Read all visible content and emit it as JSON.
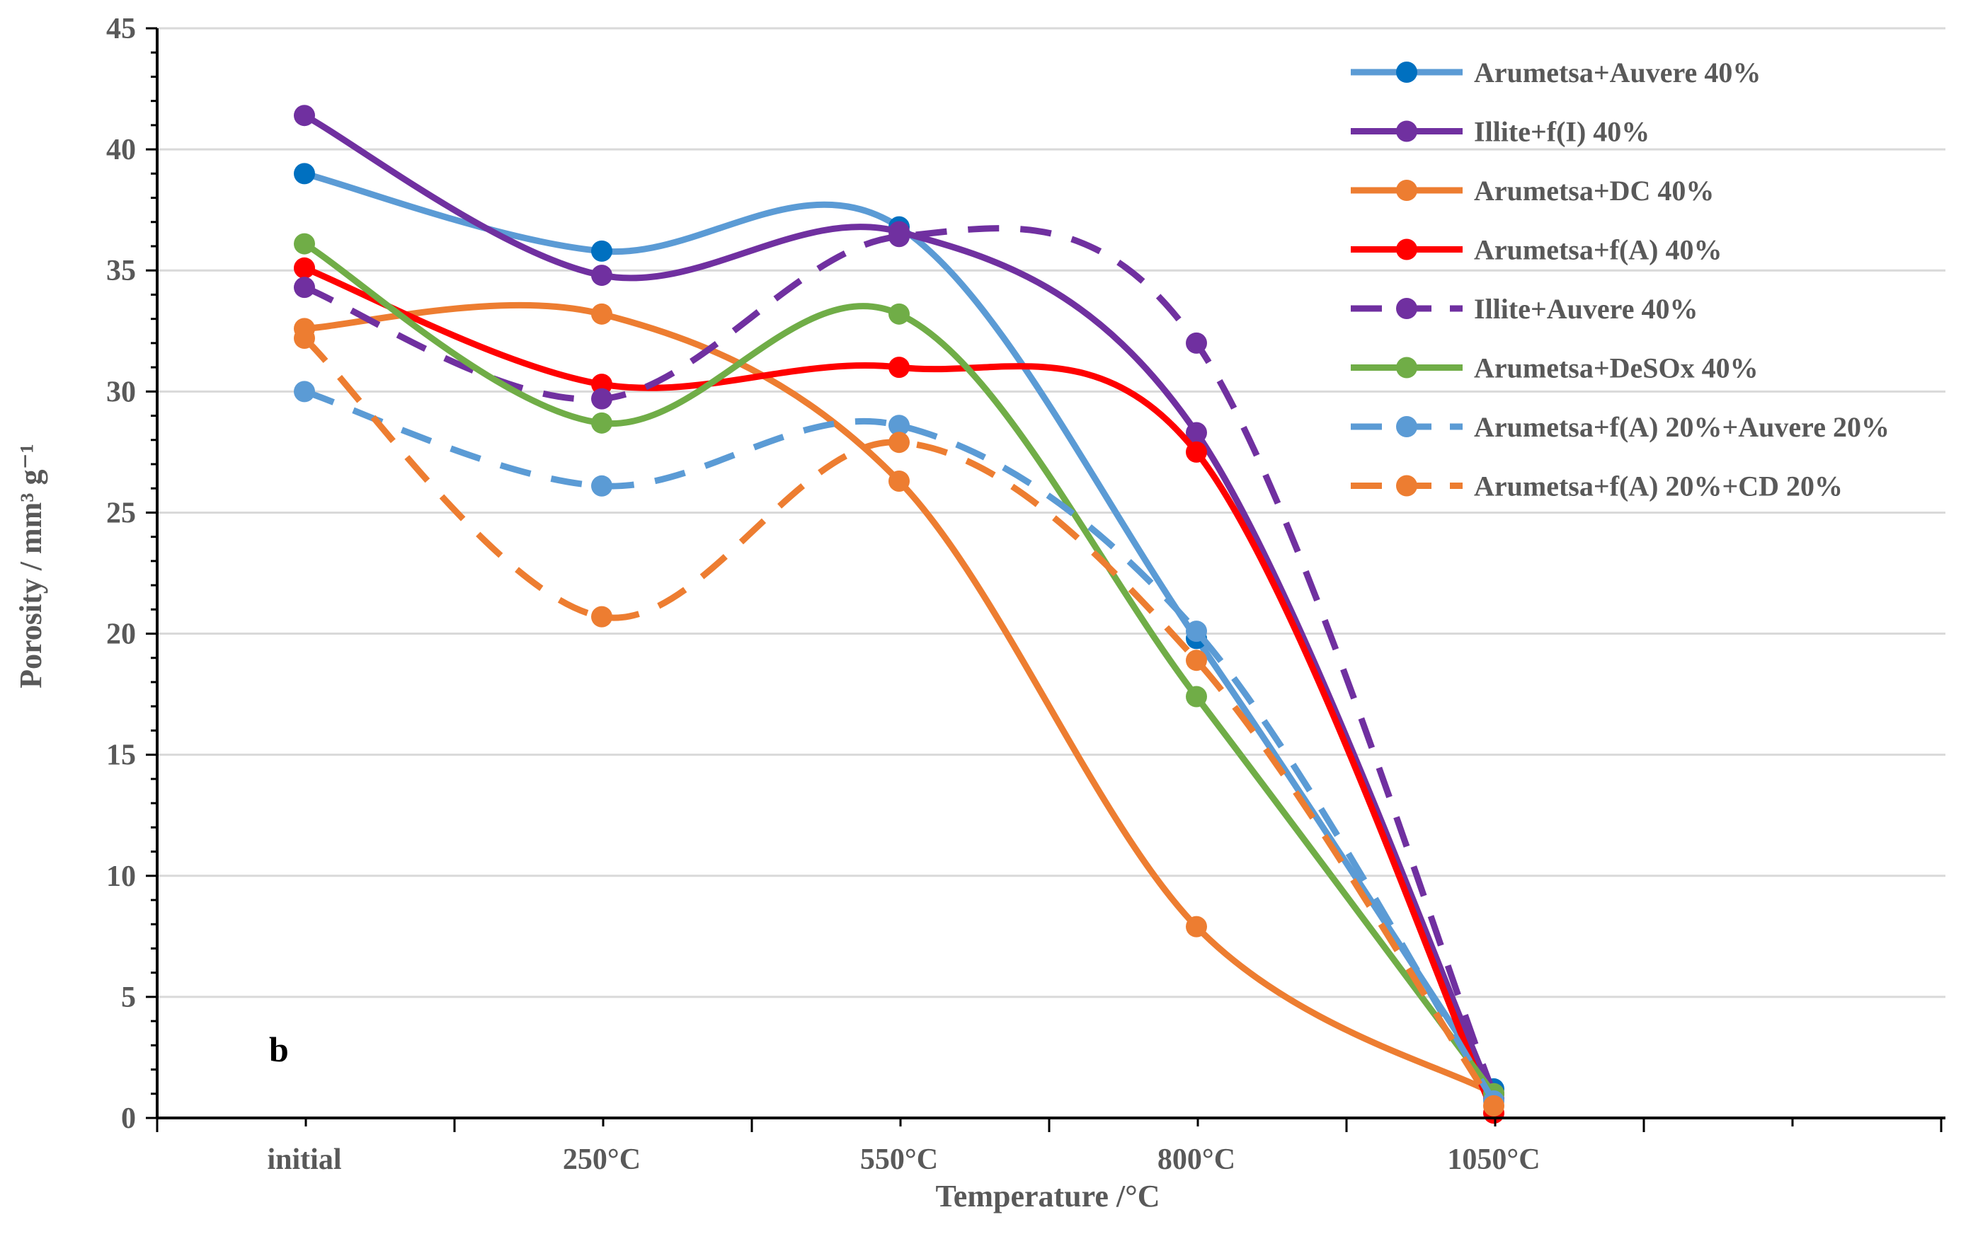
{
  "chart_data": {
    "type": "line",
    "title": "",
    "panel_label": "b",
    "xlabel": "Temperature /°C",
    "ylabel": "Porosity / mm³ g⁻¹",
    "categories": [
      "initial",
      "250°C",
      "550°C",
      "800°C",
      "1050°C"
    ],
    "ylim": [
      0,
      45
    ],
    "yticks": [
      0,
      5,
      10,
      15,
      20,
      25,
      30,
      35,
      40,
      45
    ],
    "grid": true,
    "legend_position": "top-right",
    "series": [
      {
        "name": "Arumetsa+Auvere 40%",
        "color": "#5B9BD5",
        "marker_color": "#0070C0",
        "dashed": false,
        "values": [
          39.0,
          35.8,
          36.8,
          19.8,
          1.2
        ]
      },
      {
        "name": "Illite+f(I) 40%",
        "color": "#7030A0",
        "marker_color": "#7030A0",
        "dashed": false,
        "values": [
          41.4,
          34.8,
          36.6,
          28.3,
          0.8
        ]
      },
      {
        "name": "Arumetsa+DC 40%",
        "color": "#ED7D31",
        "marker_color": "#ED7D31",
        "dashed": false,
        "values": [
          32.6,
          33.2,
          26.3,
          7.9,
          1.0
        ]
      },
      {
        "name": "Arumetsa+f(A) 40%",
        "color": "#FF0000",
        "marker_color": "#FF0000",
        "dashed": false,
        "values": [
          35.1,
          30.3,
          31.0,
          27.5,
          0.2
        ]
      },
      {
        "name": "Illite+Auvere 40%",
        "color": "#7030A0",
        "marker_color": "#7030A0",
        "dashed": true,
        "values": [
          34.3,
          29.7,
          36.4,
          32.0,
          1.0
        ]
      },
      {
        "name": "Arumetsa+DeSOx 40%",
        "color": "#70AD47",
        "marker_color": "#70AD47",
        "dashed": false,
        "values": [
          36.1,
          28.7,
          33.2,
          17.4,
          1.0
        ]
      },
      {
        "name": "Arumetsa+f(A) 20%+Auvere 20%",
        "color": "#5B9BD5",
        "marker_color": "#5B9BD5",
        "dashed": true,
        "values": [
          30.0,
          26.1,
          28.6,
          20.1,
          0.7
        ]
      },
      {
        "name": "Arumetsa+f(A) 20%+CD 20%",
        "color": "#ED7D31",
        "marker_color": "#ED7D31",
        "dashed": true,
        "values": [
          32.2,
          20.7,
          27.9,
          18.9,
          0.5
        ]
      }
    ]
  }
}
